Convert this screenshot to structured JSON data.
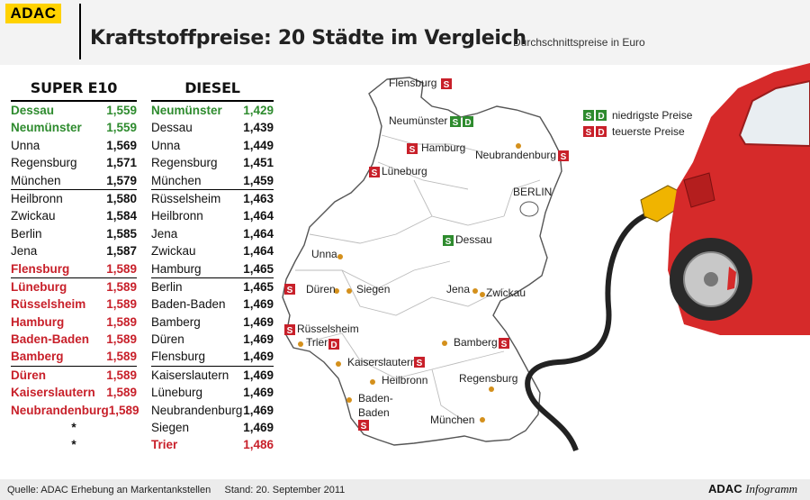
{
  "header": {
    "logo": "ADAC",
    "title": "Kraftstoffpreise: 20 Städte im Vergleich",
    "subtitle": "Durchschnittspreise in Euro"
  },
  "super_e10": {
    "heading": "SUPER E10",
    "rows": [
      {
        "city": "Dessau",
        "price": "1,559",
        "status": "low"
      },
      {
        "city": "Neumünster",
        "price": "1,559",
        "status": "low"
      },
      {
        "city": "Unna",
        "price": "1,569",
        "status": "normal"
      },
      {
        "city": "Regensburg",
        "price": "1,571",
        "status": "normal"
      },
      {
        "city": "München",
        "price": "1,579",
        "status": "normal"
      },
      {
        "city": "Heilbronn",
        "price": "1,580",
        "status": "normal"
      },
      {
        "city": "Zwickau",
        "price": "1,584",
        "status": "normal"
      },
      {
        "city": "Berlin",
        "price": "1,585",
        "status": "normal"
      },
      {
        "city": "Jena",
        "price": "1,587",
        "status": "normal"
      },
      {
        "city": "Flensburg",
        "price": "1,589",
        "status": "high"
      },
      {
        "city": "Lüneburg",
        "price": "1,589",
        "status": "high"
      },
      {
        "city": "Rüsselsheim",
        "price": "1,589",
        "status": "high"
      },
      {
        "city": "Hamburg",
        "price": "1,589",
        "status": "high"
      },
      {
        "city": "Baden-Baden",
        "price": "1,589",
        "status": "high"
      },
      {
        "city": "Bamberg",
        "price": "1,589",
        "status": "high"
      },
      {
        "city": "Düren",
        "price": "1,589",
        "status": "high"
      },
      {
        "city": "Kaiserslautern",
        "price": "1,589",
        "status": "high"
      },
      {
        "city": "Neubrandenburg",
        "price": "1,589",
        "status": "high"
      },
      {
        "city": "",
        "price": "*",
        "status": "empty"
      },
      {
        "city": "",
        "price": "*",
        "status": "empty"
      }
    ]
  },
  "diesel": {
    "heading": "DIESEL",
    "rows": [
      {
        "city": "Neumünster",
        "price": "1,429",
        "status": "low"
      },
      {
        "city": "Dessau",
        "price": "1,439",
        "status": "normal"
      },
      {
        "city": "Unna",
        "price": "1,449",
        "status": "normal"
      },
      {
        "city": "Regensburg",
        "price": "1,451",
        "status": "normal"
      },
      {
        "city": "München",
        "price": "1,459",
        "status": "normal"
      },
      {
        "city": "Rüsselsheim",
        "price": "1,463",
        "status": "normal"
      },
      {
        "city": "Heilbronn",
        "price": "1,464",
        "status": "normal"
      },
      {
        "city": "Jena",
        "price": "1,464",
        "status": "normal"
      },
      {
        "city": "Zwickau",
        "price": "1,464",
        "status": "normal"
      },
      {
        "city": "Hamburg",
        "price": "1,465",
        "status": "normal"
      },
      {
        "city": "Berlin",
        "price": "1,465",
        "status": "normal"
      },
      {
        "city": "Baden-Baden",
        "price": "1,469",
        "status": "normal"
      },
      {
        "city": "Bamberg",
        "price": "1,469",
        "status": "normal"
      },
      {
        "city": "Düren",
        "price": "1,469",
        "status": "normal"
      },
      {
        "city": "Flensburg",
        "price": "1,469",
        "status": "normal"
      },
      {
        "city": "Kaiserslautern",
        "price": "1,469",
        "status": "normal"
      },
      {
        "city": "Lüneburg",
        "price": "1,469",
        "status": "normal"
      },
      {
        "city": "Neubrandenburg",
        "price": "1,469",
        "status": "normal"
      },
      {
        "city": "Siegen",
        "price": "1,469",
        "status": "normal"
      },
      {
        "city": "Trier",
        "price": "1,486",
        "status": "high"
      }
    ]
  },
  "legend": {
    "low_label": "niedrigste Preise",
    "high_label": "teuerste Preise",
    "badge_super": "S",
    "badge_diesel": "D"
  },
  "map": {
    "cities": [
      {
        "name": "Flensburg"
      },
      {
        "name": "Neumünster"
      },
      {
        "name": "Hamburg"
      },
      {
        "name": "Neubrandenburg"
      },
      {
        "name": "Lüneburg"
      },
      {
        "name": "BERLIN"
      },
      {
        "name": "Dessau"
      },
      {
        "name": "Unna"
      },
      {
        "name": "Düren"
      },
      {
        "name": "Siegen"
      },
      {
        "name": "Jena"
      },
      {
        "name": "Zwickau"
      },
      {
        "name": "Rüsselsheim"
      },
      {
        "name": "Trier"
      },
      {
        "name": "Bamberg"
      },
      {
        "name": "Kaiserslautern"
      },
      {
        "name": "Heilbronn"
      },
      {
        "name": "Regensburg"
      },
      {
        "name": "Baden-"
      },
      {
        "name": "Baden"
      },
      {
        "name": "München"
      }
    ]
  },
  "colors": {
    "low": "#2e8b2e",
    "high": "#c8202a",
    "dot": "#d4901c",
    "logo_bg": "#ffd200"
  },
  "footer": {
    "source": "Quelle: ADAC Erhebung an Markentankstellen",
    "date": "Stand: 20. September 2011",
    "brand_bold": "ADAC",
    "brand_italic": "Infogramm"
  }
}
